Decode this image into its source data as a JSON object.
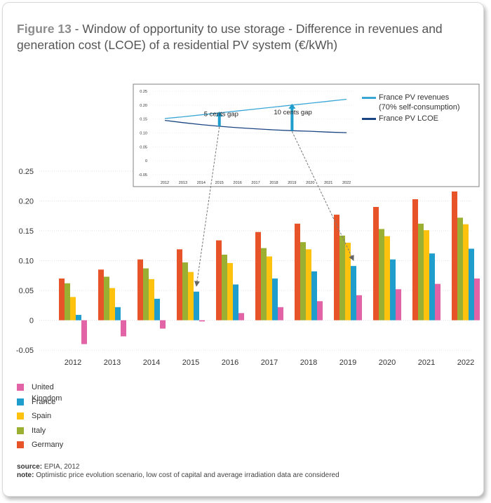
{
  "title": {
    "label": "Figure 13",
    "text": " - Window of opportunity to use storage - Difference in revenues and generation cost (LCOE) of a residential PV system (€/kWh)"
  },
  "chart_data": [
    {
      "type": "bar",
      "categories": [
        "2012",
        "2013",
        "2014",
        "2015",
        "2016",
        "2017",
        "2018",
        "2019",
        "2020",
        "2021",
        "2022"
      ],
      "series": [
        {
          "name": "Germany",
          "color": "#e8542a",
          "values": [
            0.07,
            0.085,
            0.102,
            0.119,
            0.134,
            0.148,
            0.162,
            0.177,
            0.19,
            0.203,
            0.216
          ]
        },
        {
          "name": "Italy",
          "color": "#9bb033",
          "values": [
            0.062,
            0.073,
            0.087,
            0.097,
            0.11,
            0.121,
            0.131,
            0.142,
            0.153,
            0.162,
            0.172
          ]
        },
        {
          "name": "Spain",
          "color": "#fcc20d",
          "values": [
            0.039,
            0.054,
            0.069,
            0.081,
            0.096,
            0.107,
            0.119,
            0.13,
            0.141,
            0.151,
            0.161
          ]
        },
        {
          "name": "France",
          "color": "#1f9dcc",
          "values": [
            0.009,
            0.022,
            0.036,
            0.048,
            0.06,
            0.07,
            0.082,
            0.091,
            0.102,
            0.112,
            0.12
          ]
        },
        {
          "name": "United Kingdom",
          "color": "#e264a6",
          "values": [
            -0.04,
            -0.027,
            -0.014,
            -0.002,
            0.012,
            0.022,
            0.032,
            0.042,
            0.052,
            0.061,
            0.07
          ]
        }
      ],
      "yticks": [
        "0.25",
        "0.20",
        "0.15",
        "0.10",
        "0.05",
        "0",
        "-0.05"
      ],
      "ylim": [
        -0.05,
        0.25
      ],
      "grid": true,
      "legend_placement": "bottom-left",
      "legend_order": [
        "United Kingdom",
        "France",
        "Spain",
        "Italy",
        "Germany"
      ]
    },
    {
      "type": "line",
      "x": [
        "2012",
        "2013",
        "2014",
        "2015",
        "2016",
        "2017",
        "2018",
        "2019",
        "2020",
        "2021",
        "2022"
      ],
      "series": [
        {
          "name": "France PV revenues (70% self-consumption)",
          "legend_lines": [
            "France PV revenues",
            "(70% self-consumption)"
          ],
          "color": "#3aa6d6",
          "values": [
            0.152,
            0.158,
            0.165,
            0.172,
            0.179,
            0.186,
            0.193,
            0.2,
            0.207,
            0.214,
            0.221
          ]
        },
        {
          "name": "France PV LCOE",
          "legend_lines": [
            "France PV LCOE"
          ],
          "color": "#1b4483",
          "values": [
            0.145,
            0.137,
            0.13,
            0.124,
            0.119,
            0.115,
            0.111,
            0.108,
            0.106,
            0.103,
            0.101
          ]
        }
      ],
      "yticks": [
        "0.25",
        "0.20",
        "0.15",
        "0.10",
        "0.05",
        "0",
        "-0.05"
      ],
      "ylim": [
        -0.05,
        0.25
      ],
      "annotations": [
        {
          "text": "5 cents gap",
          "year": "2015",
          "from": 0.124,
          "to": 0.172
        },
        {
          "text": "10 cents gap",
          "year": "2019",
          "from": 0.108,
          "to": 0.2
        }
      ],
      "legend_placement": "right"
    }
  ],
  "source": {
    "label": "source:",
    "text": " EPIA, 2012"
  },
  "note": {
    "label": "note:",
    "text": " Optimistic price evolution scenario, low cost of capital and average irradiation data are considered"
  }
}
